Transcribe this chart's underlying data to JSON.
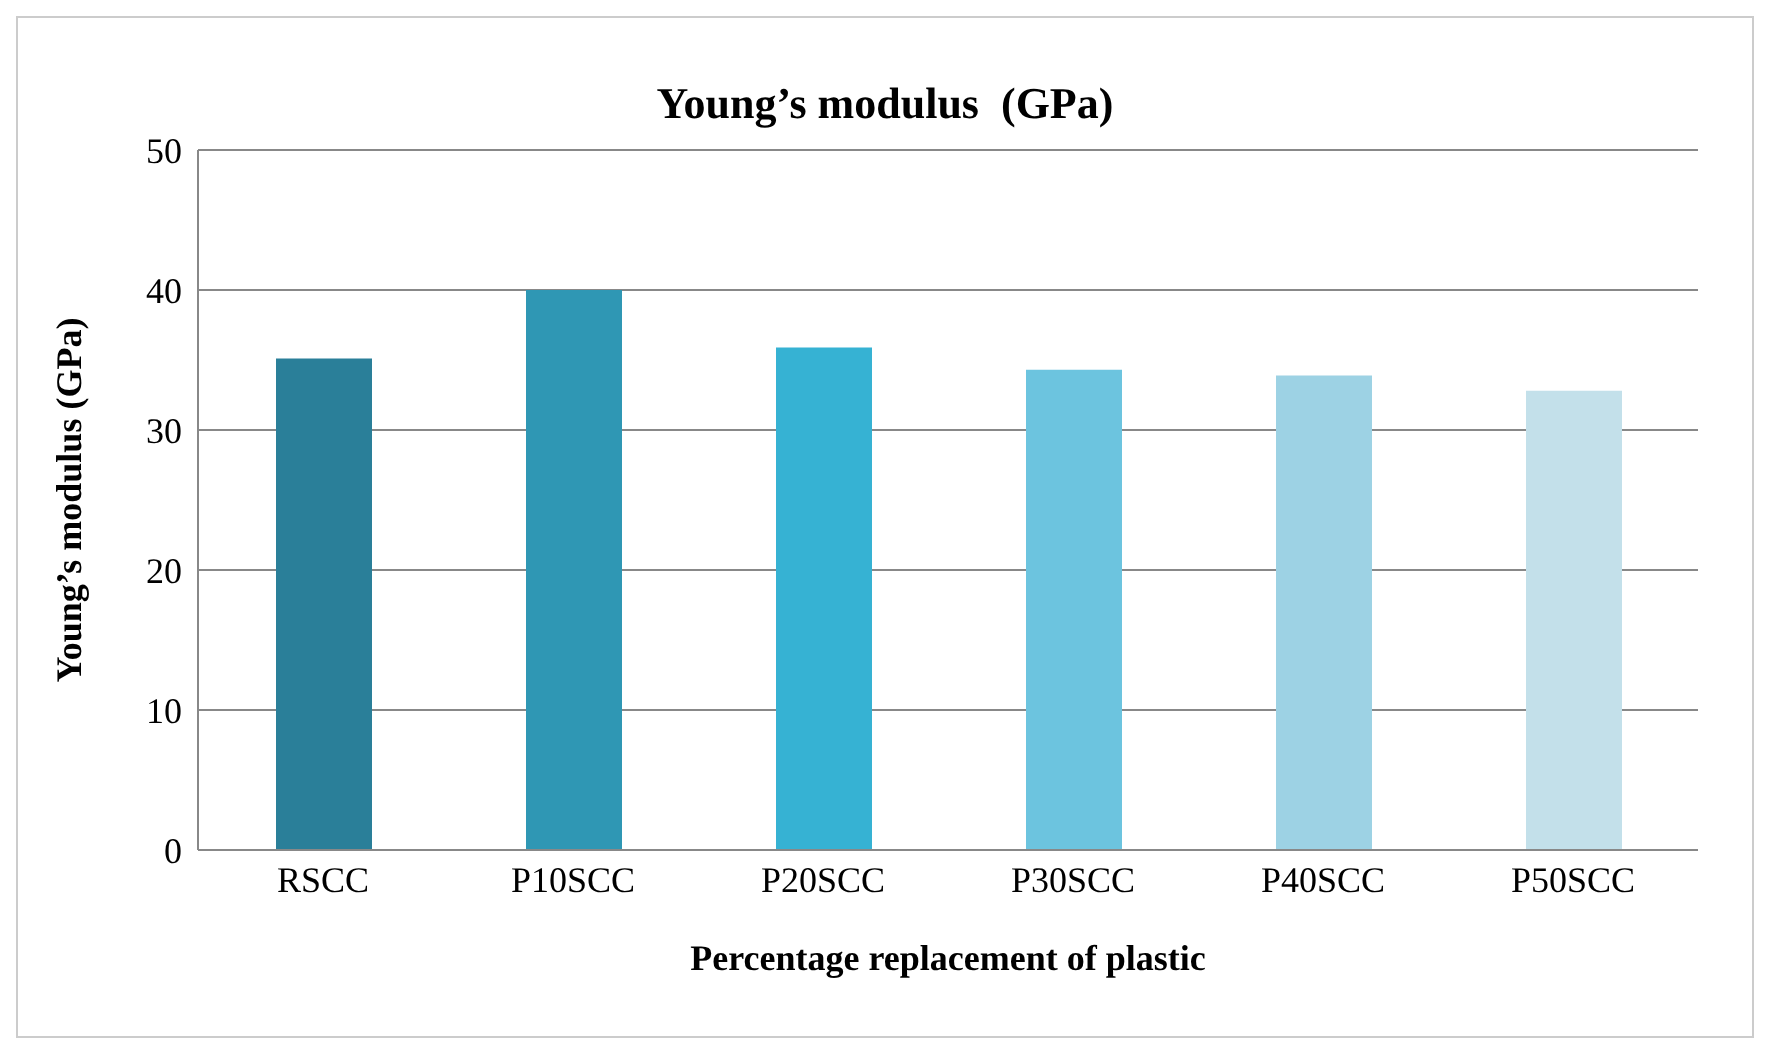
{
  "chart_data": {
    "type": "bar",
    "title": "Young’s modulus  (GPa)",
    "xlabel": "Percentage replacement of plastic",
    "ylabel": "Young’s modulus (GPa)",
    "categories": [
      "RSCC",
      "P10SCC",
      "P20SCC",
      "P30SCC",
      "P40SCC",
      "P50SCC"
    ],
    "values": [
      35.1,
      40,
      35.9,
      34.3,
      33.9,
      32.8
    ],
    "colors": [
      "#2a7f99",
      "#2f97b4",
      "#36b2d3",
      "#6cc4df",
      "#9dd2e4",
      "#c3e0ea"
    ],
    "ylim": [
      0,
      50
    ],
    "yticks": [
      0,
      10,
      20,
      30,
      40,
      50
    ],
    "grid": "y"
  }
}
